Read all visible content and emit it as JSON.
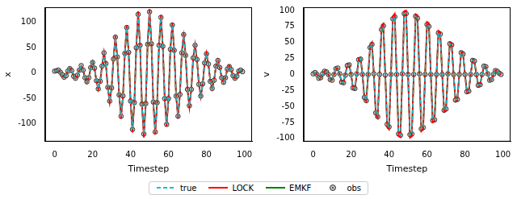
{
  "chart_data": [
    {
      "type": "line",
      "xlabel": "Timestep",
      "ylabel": "x",
      "grid": false,
      "legend": "bottom",
      "x": [
        0,
        1,
        2,
        3,
        4,
        5,
        6,
        7,
        8,
        9,
        10,
        11,
        12,
        13,
        14,
        15,
        16,
        17,
        18,
        19,
        20,
        21,
        22,
        23,
        24,
        25,
        26,
        27,
        28,
        29,
        30,
        31,
        32,
        33,
        34,
        35,
        36,
        37,
        38,
        39,
        40,
        41,
        42,
        43,
        44,
        45,
        46,
        47,
        48,
        49,
        50,
        51,
        52,
        53,
        54,
        55,
        56,
        57,
        58,
        59,
        60,
        61,
        62,
        63,
        64,
        65,
        66,
        67,
        68,
        69,
        70,
        71,
        72,
        73,
        74,
        75,
        76,
        77,
        78,
        79,
        80,
        81,
        82,
        83,
        84,
        85,
        86,
        87,
        88,
        89,
        90,
        91,
        92,
        93,
        94,
        95,
        96,
        97,
        98,
        99
      ],
      "xlim": [
        -5,
        104
      ],
      "xticks": [
        0,
        20,
        40,
        60,
        80,
        100
      ],
      "ylim": [
        -135,
        130
      ],
      "yticks": [
        -100,
        -50,
        0,
        50,
        100
      ],
      "series": [
        {
          "name": "true",
          "color": "#17becf",
          "line_style": "dashed",
          "values": [
            3,
            5,
            5,
            2,
            -4,
            -8,
            -4,
            4,
            10,
            5,
            -5,
            -10,
            -5,
            6,
            14,
            6,
            -9,
            -18,
            -9,
            10,
            22,
            10,
            -15,
            -30,
            -16,
            15,
            40,
            18,
            -28,
            -55,
            -30,
            28,
            70,
            32,
            -42,
            -85,
            -45,
            40,
            90,
            40,
            -55,
            -110,
            -58,
            50,
            115,
            55,
            -62,
            -120,
            -60,
            58,
            120,
            58,
            -58,
            -115,
            -58,
            55,
            110,
            52,
            -50,
            -100,
            -50,
            48,
            95,
            45,
            -44,
            -85,
            -42,
            40,
            75,
            35,
            -32,
            -65,
            -32,
            30,
            55,
            26,
            -22,
            -45,
            -22,
            20,
            38,
            18,
            -15,
            -30,
            -14,
            14,
            25,
            12,
            -9,
            -18,
            -9,
            8,
            14,
            7,
            -5,
            -10,
            -5,
            4,
            6,
            3
          ]
        },
        {
          "name": "LOCK",
          "color": "#ff0000",
          "line_style": "solid",
          "values": [
            3,
            5,
            5,
            2,
            -4,
            -8,
            -4,
            4,
            10,
            5,
            -5,
            -10,
            -5,
            6,
            14,
            6,
            -9,
            -19,
            -9,
            10,
            23,
            10,
            -16,
            -32,
            -16,
            15,
            42,
            18,
            -29,
            -58,
            -30,
            29,
            74,
            33,
            -43,
            -90,
            -46,
            41,
            95,
            41,
            -56,
            -117,
            -59,
            51,
            122,
            56,
            -63,
            -127,
            -61,
            59,
            126,
            59,
            -59,
            -121,
            -59,
            56,
            115,
            53,
            -51,
            -105,
            -51,
            49,
            99,
            46,
            -45,
            -89,
            -43,
            41,
            78,
            36,
            -33,
            -68,
            -33,
            31,
            57,
            26,
            -22,
            -47,
            -22,
            20,
            40,
            18,
            -15,
            -31,
            -14,
            14,
            26,
            12,
            -9,
            -19,
            -9,
            8,
            15,
            7,
            -5,
            -10,
            -5,
            4,
            6,
            3
          ]
        },
        {
          "name": "EMKF",
          "color": "#008000",
          "line_style": "solid",
          "values": [
            3,
            5,
            5,
            2,
            -4,
            -8,
            -4,
            4,
            10,
            5,
            -5,
            -10,
            -5,
            6,
            14,
            6,
            -9,
            -18,
            -9,
            10,
            22,
            10,
            -15,
            -30,
            -16,
            15,
            39,
            18,
            -28,
            -54,
            -30,
            28,
            69,
            32,
            -42,
            -84,
            -45,
            40,
            89,
            40,
            -55,
            -108,
            -58,
            50,
            113,
            55,
            -62,
            -118,
            -60,
            58,
            118,
            58,
            -58,
            -113,
            -58,
            55,
            108,
            52,
            -50,
            -98,
            -50,
            48,
            93,
            45,
            -44,
            -83,
            -42,
            40,
            73,
            35,
            -32,
            -64,
            -32,
            30,
            54,
            26,
            -22,
            -44,
            -22,
            20,
            37,
            18,
            -15,
            -29,
            -14,
            14,
            24,
            12,
            -9,
            -17,
            -9,
            8,
            14,
            7,
            -5,
            -10,
            -5,
            4,
            6,
            3
          ]
        },
        {
          "name": "obs",
          "color": "#333333",
          "type": "scatter",
          "marker": "circle",
          "values": [
            4,
            5,
            6,
            2,
            -3,
            -8,
            -5,
            4,
            9,
            5,
            -6,
            -10,
            -4,
            6,
            15,
            6,
            -9,
            -17,
            -9,
            11,
            21,
            10,
            -15,
            -31,
            -16,
            14,
            40,
            19,
            -28,
            -55,
            -29,
            28,
            71,
            32,
            -43,
            -85,
            -45,
            39,
            90,
            41,
            -55,
            -111,
            -58,
            50,
            116,
            55,
            -61,
            -120,
            -60,
            57,
            121,
            58,
            -57,
            -116,
            -58,
            55,
            110,
            53,
            -50,
            -101,
            -50,
            47,
            95,
            45,
            -45,
            -85,
            -42,
            40,
            76,
            35,
            -32,
            -64,
            -32,
            30,
            55,
            27,
            -22,
            -45,
            -21,
            20,
            38,
            18,
            -16,
            -30,
            -14,
            14,
            25,
            11,
            -9,
            -18,
            -9,
            8,
            13,
            7,
            -5,
            -10,
            -6,
            4,
            6,
            3
          ]
        }
      ]
    },
    {
      "type": "line",
      "xlabel": "Timestep",
      "ylabel": "v",
      "grid": false,
      "x": [
        0,
        1,
        2,
        3,
        4,
        5,
        6,
        7,
        8,
        9,
        10,
        11,
        12,
        13,
        14,
        15,
        16,
        17,
        18,
        19,
        20,
        21,
        22,
        23,
        24,
        25,
        26,
        27,
        28,
        29,
        30,
        31,
        32,
        33,
        34,
        35,
        36,
        37,
        38,
        39,
        40,
        41,
        42,
        43,
        44,
        45,
        46,
        47,
        48,
        49,
        50,
        51,
        52,
        53,
        54,
        55,
        56,
        57,
        58,
        59,
        60,
        61,
        62,
        63,
        64,
        65,
        66,
        67,
        68,
        69,
        70,
        71,
        72,
        73,
        74,
        75,
        76,
        77,
        78,
        79,
        80,
        81,
        82,
        83,
        84,
        85,
        86,
        87,
        88,
        89,
        90,
        91,
        92,
        93,
        94,
        95,
        96,
        97,
        98,
        99
      ],
      "xlim": [
        -5,
        104
      ],
      "xticks": [
        0,
        20,
        40,
        60,
        80,
        100
      ],
      "ylim": [
        -105,
        105
      ],
      "yticks": [
        -100,
        -75,
        -50,
        -25,
        0,
        25,
        50,
        75,
        100
      ],
      "series": [
        {
          "name": "true",
          "color": "#17becf",
          "line_style": "dashed",
          "values": [
            0,
            3,
            0,
            -5,
            -5,
            0,
            5,
            5,
            0,
            -8,
            -8,
            0,
            9,
            9,
            0,
            -12,
            -13,
            0,
            14,
            15,
            0,
            -20,
            -22,
            0,
            23,
            25,
            0,
            -36,
            -40,
            0,
            42,
            48,
            0,
            -60,
            -65,
            0,
            70,
            75,
            0,
            -78,
            -82,
            0,
            86,
            90,
            0,
            -92,
            -95,
            0,
            95,
            96,
            0,
            -95,
            -93,
            0,
            90,
            88,
            0,
            -85,
            -82,
            0,
            78,
            76,
            0,
            -72,
            -70,
            0,
            65,
            62,
            0,
            -56,
            -54,
            0,
            48,
            46,
            0,
            -40,
            -38,
            0,
            34,
            32,
            0,
            -27,
            -26,
            0,
            22,
            20,
            0,
            -17,
            -16,
            0,
            13,
            12,
            0,
            -9,
            -8,
            0,
            6,
            5,
            2,
            0
          ]
        },
        {
          "name": "LOCK",
          "color": "#ff0000",
          "line_style": "solid",
          "values": [
            0,
            3,
            0,
            -5,
            -5,
            0,
            5,
            5,
            0,
            -8,
            -8,
            0,
            9,
            9,
            0,
            -12,
            -14,
            0,
            15,
            16,
            0,
            -21,
            -23,
            0,
            24,
            26,
            0,
            -38,
            -42,
            0,
            44,
            50,
            0,
            -63,
            -68,
            0,
            74,
            79,
            0,
            -82,
            -86,
            0,
            91,
            95,
            0,
            -96,
            -98,
            0,
            99,
            100,
            0,
            -99,
            -97,
            0,
            94,
            92,
            0,
            -89,
            -86,
            0,
            82,
            80,
            0,
            -75,
            -73,
            0,
            68,
            65,
            0,
            -58,
            -56,
            0,
            50,
            48,
            0,
            -42,
            -40,
            0,
            35,
            33,
            0,
            -28,
            -27,
            0,
            23,
            21,
            0,
            -18,
            -17,
            0,
            13,
            12,
            0,
            -9,
            -8,
            0,
            6,
            5,
            2,
            0
          ]
        },
        {
          "name": "EMKF",
          "color": "#008000",
          "line_style": "solid",
          "values": [
            0,
            3,
            0,
            -5,
            -5,
            0,
            5,
            5,
            0,
            -8,
            -8,
            0,
            9,
            9,
            0,
            -12,
            -13,
            0,
            14,
            15,
            0,
            -20,
            -21,
            0,
            22,
            24,
            0,
            -35,
            -39,
            0,
            41,
            47,
            0,
            -59,
            -64,
            0,
            68,
            73,
            0,
            -76,
            -80,
            0,
            84,
            88,
            0,
            -90,
            -93,
            0,
            93,
            94,
            0,
            -93,
            -91,
            0,
            88,
            86,
            0,
            -83,
            -80,
            0,
            76,
            74,
            0,
            -70,
            -68,
            0,
            63,
            60,
            0,
            -54,
            -52,
            0,
            47,
            45,
            0,
            -39,
            -37,
            0,
            33,
            31,
            0,
            -26,
            -25,
            0,
            21,
            19,
            0,
            -16,
            -15,
            0,
            12,
            11,
            0,
            -9,
            -8,
            0,
            6,
            5,
            2,
            0
          ]
        },
        {
          "name": "obs",
          "color": "#333333",
          "type": "scatter",
          "marker": "circle",
          "values": [
            1,
            3,
            0,
            -6,
            -5,
            1,
            5,
            4,
            0,
            -8,
            -9,
            0,
            9,
            10,
            1,
            -12,
            -13,
            -1,
            14,
            15,
            0,
            -21,
            -22,
            1,
            23,
            24,
            0,
            -36,
            -41,
            0,
            42,
            47,
            1,
            -60,
            -66,
            0,
            70,
            76,
            -1,
            -78,
            -82,
            0,
            87,
            90,
            0,
            -93,
            -95,
            1,
            95,
            95,
            0,
            -94,
            -93,
            0,
            91,
            88,
            1,
            -85,
            -83,
            0,
            78,
            75,
            0,
            -72,
            -71,
            0,
            65,
            63,
            0,
            -56,
            -54,
            1,
            48,
            46,
            0,
            -40,
            -39,
            0,
            34,
            32,
            0,
            -27,
            -26,
            0,
            22,
            21,
            0,
            -17,
            -16,
            0,
            13,
            12,
            1,
            -9,
            -8,
            0,
            6,
            5,
            2,
            0
          ]
        }
      ]
    }
  ]
}
